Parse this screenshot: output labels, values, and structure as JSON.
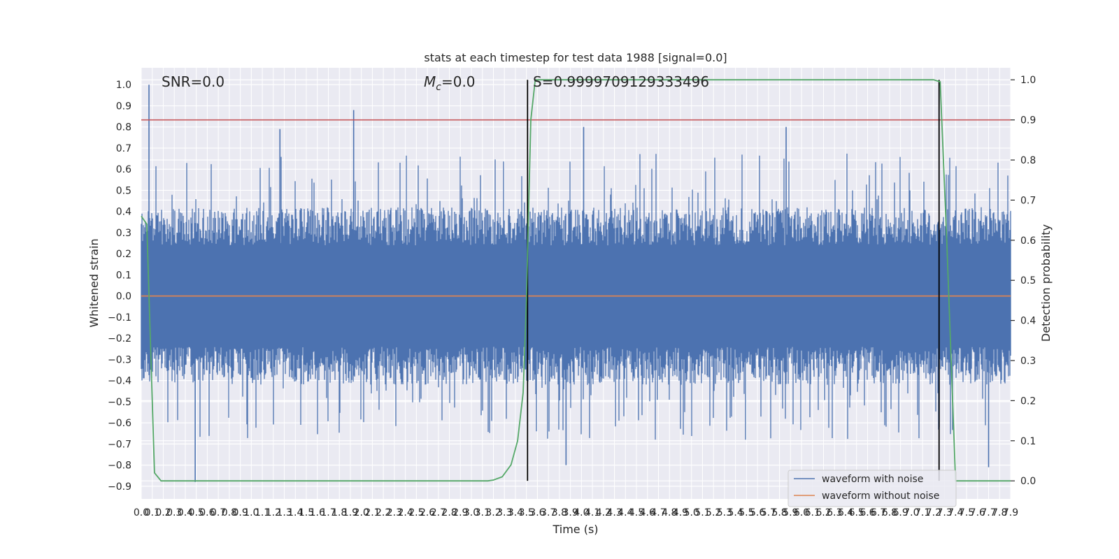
{
  "chart_data": {
    "type": "line",
    "title": "stats at each timestep for test data 1988 [signal=0.0]",
    "xlabel": "Time (s)",
    "ylabel": "Whitened strain",
    "y2label": "Detection probability",
    "xlim": [
      0.0,
      7.9
    ],
    "ylim": [
      -0.96,
      1.08
    ],
    "y2lim": [
      -0.045,
      1.03
    ],
    "grid": true,
    "x_ticks": [
      "0.0",
      "0.1",
      "0.2",
      "0.3",
      "0.4",
      "0.5",
      "0.6",
      "0.7",
      "0.8",
      "0.9",
      "1.0",
      "1.1",
      "1.2",
      "1.3",
      "1.4",
      "1.5",
      "1.6",
      "1.7",
      "1.8",
      "1.9",
      "2.0",
      "2.1",
      "2.2",
      "2.3",
      "2.4",
      "2.5",
      "2.6",
      "2.7",
      "2.8",
      "2.9",
      "3.0",
      "3.1",
      "3.2",
      "3.3",
      "3.4",
      "3.5",
      "3.6",
      "3.7",
      "3.8",
      "3.9",
      "4.0",
      "4.1",
      "4.2",
      "4.3",
      "4.4",
      "4.5",
      "4.6",
      "4.7",
      "4.8",
      "4.9",
      "5.0",
      "5.1",
      "5.2",
      "5.3",
      "5.4",
      "5.5",
      "5.6",
      "5.7",
      "5.8",
      "5.9",
      "6.0",
      "6.1",
      "6.2",
      "6.3",
      "6.4",
      "6.5",
      "6.6",
      "6.7",
      "6.8",
      "6.9",
      "7.0",
      "7.1",
      "7.2",
      "7.3",
      "7.4",
      "7.5",
      "7.6",
      "7.7",
      "7.8",
      "7.9"
    ],
    "y_ticks": [
      "1.0",
      "0.9",
      "0.8",
      "0.7",
      "0.6",
      "0.5",
      "0.4",
      "0.3",
      "0.2",
      "0.1",
      "0.0",
      "−0.1",
      "−0.2",
      "−0.3",
      "−0.4",
      "−0.5",
      "−0.6",
      "−0.7",
      "−0.8",
      "−0.9"
    ],
    "y2_ticks": [
      "1.0",
      "0.9",
      "0.8",
      "0.7",
      "0.6",
      "0.5",
      "0.4",
      "0.3",
      "0.2",
      "0.1",
      "0.0"
    ],
    "annotations": {
      "snr": "SNR=0.0",
      "mc_symbol": "M",
      "mc_sub": "c",
      "mc_value": "=0.0",
      "s": "S=0.9999709129333496"
    },
    "threshold_y2": 0.9,
    "event_lines_x": [
      3.51,
      7.25
    ],
    "noise_series": {
      "name": "waveform with noise",
      "color": "#4c72b0",
      "peaks": [
        {
          "x": 0.07,
          "y": 1.0
        },
        {
          "x": 0.49,
          "y": -0.88
        },
        {
          "x": 1.93,
          "y": 0.88
        },
        {
          "x": 1.26,
          "y": 0.79
        },
        {
          "x": 4.02,
          "y": 0.8
        },
        {
          "x": 5.86,
          "y": 0.8
        },
        {
          "x": 7.7,
          "y": -0.81
        },
        {
          "x": 3.86,
          "y": -0.8
        }
      ]
    },
    "clean_series": {
      "name": "waveform without noise",
      "color": "#dd8452",
      "value": 0.0
    },
    "probability_series": {
      "color": "#55a868",
      "x": [
        0.0,
        0.05,
        0.12,
        0.18,
        0.3,
        0.5,
        1.0,
        2.0,
        3.0,
        3.15,
        3.2,
        3.28,
        3.36,
        3.42,
        3.47,
        3.5,
        3.54,
        3.58,
        4.0,
        5.0,
        6.0,
        7.0,
        7.2,
        7.26,
        7.32,
        7.4,
        7.6,
        7.8,
        7.9
      ],
      "y": [
        0.66,
        0.64,
        0.02,
        0.0,
        0.0,
        0.0,
        0.0,
        0.0,
        0.0,
        0.0,
        0.002,
        0.01,
        0.04,
        0.1,
        0.22,
        0.45,
        0.9,
        1.0,
        1.0,
        1.0,
        1.0,
        1.0,
        1.0,
        0.995,
        0.6,
        0.0,
        0.0,
        0.0,
        0.0
      ]
    },
    "legend": {
      "position": "lower-right",
      "entries": [
        "waveform with noise",
        "waveform without noise"
      ]
    }
  }
}
